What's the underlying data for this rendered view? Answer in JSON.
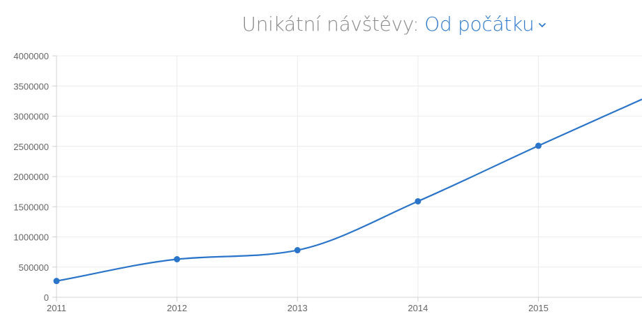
{
  "header": {
    "title_label": "Unikátní návštěvy:",
    "range_value": "Od počátku",
    "chevron_icon": "chevron-down-icon"
  },
  "chart_data": {
    "type": "line",
    "title": "Unikátní návštěvy: Od počátku",
    "x": [
      2011,
      2012,
      2013,
      2014,
      2015,
      2015.86
    ],
    "series": [
      {
        "values": [
          270000,
          630000,
          780000,
          1590000,
          2510000,
          3280000
        ],
        "markers": [
          true,
          true,
          true,
          true,
          true,
          false
        ],
        "color": "#2a75c9"
      }
    ],
    "xticks": [
      "2011",
      "2012",
      "2013",
      "2014",
      "2015"
    ],
    "yticks": [
      "0",
      "500000",
      "1000000",
      "1500000",
      "2000000",
      "2500000",
      "3000000",
      "3500000",
      "4000000"
    ],
    "xlim": [
      2011,
      2015.86
    ],
    "ylim": [
      0,
      4000000
    ],
    "grid": true,
    "xlabel": "",
    "ylabel": ""
  }
}
